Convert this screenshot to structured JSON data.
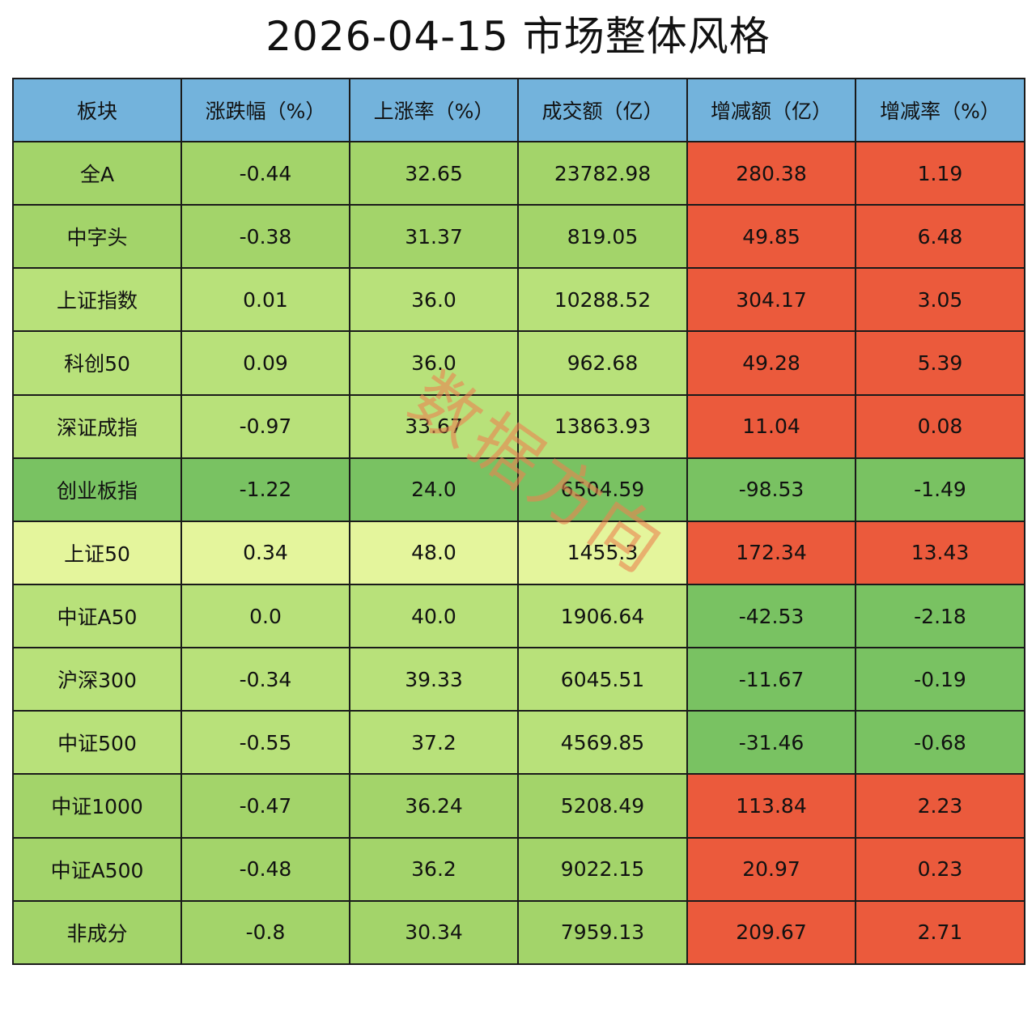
{
  "header": {
    "title": "2026-04-15 市场整体风格"
  },
  "watermark": "数据方向",
  "colors": {
    "header_bg": "#73b3dc",
    "red": "#eb5a3c",
    "green_medium": "#a3d46a",
    "green_light": "#b8e17a",
    "green_dark": "#79c262",
    "yellow_light": "#e4f59c"
  },
  "chart_data": {
    "type": "table",
    "title": "2026-04-15 市场整体风格",
    "columns": [
      "板块",
      "涨跌幅（%）",
      "上涨率（%）",
      "成交额（亿）",
      "增减额（亿）",
      "增减率（%）"
    ],
    "rows": [
      {
        "name": "全A",
        "change_pct": "-0.44",
        "rise_rate": "32.65",
        "turnover": "23782.98",
        "turnover_change": "280.38",
        "turnover_change_rate": "1.19"
      },
      {
        "name": "中字头",
        "change_pct": "-0.38",
        "rise_rate": "31.37",
        "turnover": "819.05",
        "turnover_change": "49.85",
        "turnover_change_rate": "6.48"
      },
      {
        "name": "上证指数",
        "change_pct": "0.01",
        "rise_rate": "36.0",
        "turnover": "10288.52",
        "turnover_change": "304.17",
        "turnover_change_rate": "3.05"
      },
      {
        "name": "科创50",
        "change_pct": "0.09",
        "rise_rate": "36.0",
        "turnover": "962.68",
        "turnover_change": "49.28",
        "turnover_change_rate": "5.39"
      },
      {
        "name": "深证成指",
        "change_pct": "-0.97",
        "rise_rate": "33.67",
        "turnover": "13863.93",
        "turnover_change": "11.04",
        "turnover_change_rate": "0.08"
      },
      {
        "name": "创业板指",
        "change_pct": "-1.22",
        "rise_rate": "24.0",
        "turnover": "6504.59",
        "turnover_change": "-98.53",
        "turnover_change_rate": "-1.49"
      },
      {
        "name": "上证50",
        "change_pct": "0.34",
        "rise_rate": "48.0",
        "turnover": "1455.3",
        "turnover_change": "172.34",
        "turnover_change_rate": "13.43"
      },
      {
        "name": "中证A50",
        "change_pct": "0.0",
        "rise_rate": "40.0",
        "turnover": "1906.64",
        "turnover_change": "-42.53",
        "turnover_change_rate": "-2.18"
      },
      {
        "name": "沪深300",
        "change_pct": "-0.34",
        "rise_rate": "39.33",
        "turnover": "6045.51",
        "turnover_change": "-11.67",
        "turnover_change_rate": "-0.19"
      },
      {
        "name": "中证500",
        "change_pct": "-0.55",
        "rise_rate": "37.2",
        "turnover": "4569.85",
        "turnover_change": "-31.46",
        "turnover_change_rate": "-0.68"
      },
      {
        "name": "中证1000",
        "change_pct": "-0.47",
        "rise_rate": "36.24",
        "turnover": "5208.49",
        "turnover_change": "113.84",
        "turnover_change_rate": "2.23"
      },
      {
        "name": "中证A500",
        "change_pct": "-0.48",
        "rise_rate": "36.2",
        "turnover": "9022.15",
        "turnover_change": "20.97",
        "turnover_change_rate": "0.23"
      },
      {
        "name": "非成分",
        "change_pct": "-0.8",
        "rise_rate": "30.34",
        "turnover": "7959.13",
        "turnover_change": "209.67",
        "turnover_change_rate": "2.71"
      }
    ],
    "row_colors_left": [
      "green_medium",
      "green_medium",
      "green_light",
      "green_light",
      "green_light",
      "green_dark",
      "yellow_light",
      "green_light",
      "green_light",
      "green_light",
      "green_medium",
      "green_medium",
      "green_medium"
    ],
    "row_colors_right": [
      "red",
      "red",
      "red",
      "red",
      "red",
      "green_dark",
      "red",
      "green_dark",
      "green_dark",
      "green_dark",
      "red",
      "red",
      "red"
    ]
  }
}
